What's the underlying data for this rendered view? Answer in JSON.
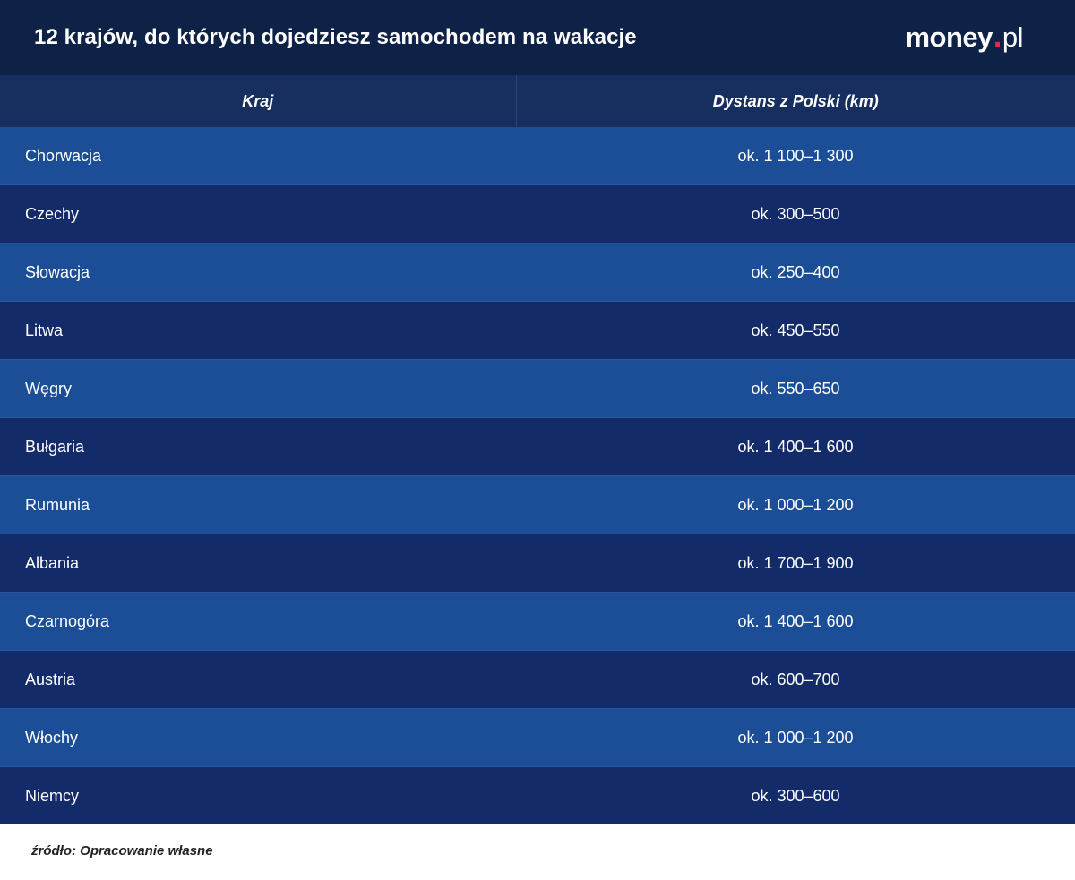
{
  "header": {
    "title": "12 krajów, do których dojedziesz samochodem na wakacje",
    "logo": {
      "main": "money",
      "dot": ".",
      "tld": "pl"
    }
  },
  "colors": {
    "header_bg": "#0e2147",
    "table_head_bg": "#172f5e",
    "row_light": "#1c4e97",
    "row_dark": "#142b6a",
    "logo_dot": "#e8294c"
  },
  "chart_data": {
    "type": "table",
    "columns": [
      "Kraj",
      "Dystans z Polski (km)"
    ],
    "rows": [
      [
        "Chorwacja",
        "ok. 1 100–1 300"
      ],
      [
        "Czechy",
        "ok. 300–500"
      ],
      [
        "Słowacja",
        "ok. 250–400"
      ],
      [
        "Litwa",
        "ok. 450–550"
      ],
      [
        "Węgry",
        "ok. 550–650"
      ],
      [
        "Bułgaria",
        "ok. 1 400–1 600"
      ],
      [
        "Rumunia",
        "ok. 1 000–1 200"
      ],
      [
        "Albania",
        "ok. 1 700–1 900"
      ],
      [
        "Czarnogóra",
        "ok. 1 400–1 600"
      ],
      [
        "Austria",
        "ok. 600–700"
      ],
      [
        "Włochy",
        "ok. 1 000–1 200"
      ],
      [
        "Niemcy",
        "ok. 300–600"
      ]
    ]
  },
  "source": "źródło: Opracowanie własne"
}
